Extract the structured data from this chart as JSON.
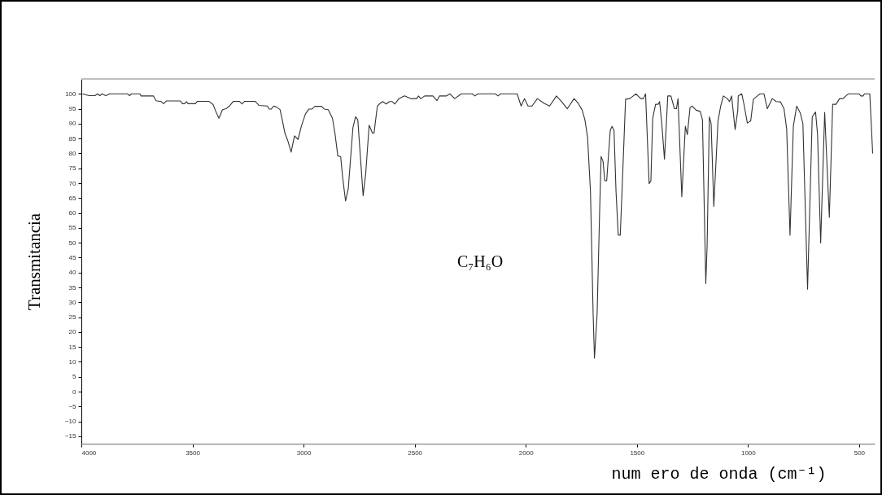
{
  "chart_data": {
    "type": "line",
    "xlabel": "num ero de onda (cm⁻¹)",
    "ylabel": "Transmitancia",
    "annotations": [
      "C₇H₆O"
    ],
    "xlim": [
      4000,
      430
    ],
    "xticks": [
      4000,
      3500,
      3000,
      2500,
      2000,
      1500,
      1000,
      500
    ],
    "ylim": [
      -17.5,
      105
    ],
    "yticks": [
      -15,
      -10,
      -5,
      0,
      5,
      10,
      15,
      20,
      25,
      30,
      35,
      40,
      45,
      50,
      55,
      60,
      65,
      70,
      75,
      80,
      85,
      90,
      95,
      100
    ],
    "grid": false,
    "x": [
      3994,
      3966,
      3939,
      3927,
      3917,
      3907,
      3890,
      3872,
      3792,
      3784,
      3774,
      3737,
      3731,
      3676,
      3664,
      3640,
      3630,
      3618,
      3554,
      3545,
      3536,
      3527,
      3520,
      3487,
      3478,
      3426,
      3407,
      3395,
      3381,
      3365,
      3349,
      3334,
      3316,
      3289,
      3277,
      3265,
      3218,
      3200,
      3163,
      3155,
      3145,
      3135,
      3123,
      3106,
      3096,
      3084,
      3072,
      3056,
      3041,
      3025,
      3010,
      2992,
      2976,
      2962,
      2949,
      2919,
      2907,
      2889,
      2870,
      2858,
      2846,
      2833,
      2824,
      2811,
      2799,
      2778,
      2766,
      2756,
      2732,
      2720,
      2705,
      2690,
      2683,
      2668,
      2656,
      2644,
      2628,
      2614,
      2601,
      2589,
      2571,
      2546,
      2516,
      2491,
      2483,
      2473,
      2455,
      2418,
      2400,
      2388,
      2357,
      2341,
      2320,
      2290,
      2241,
      2229,
      2216,
      2137,
      2125,
      2113,
      2039,
      2021,
      2006,
      1990,
      1972,
      1948,
      1917,
      1893,
      1862,
      1838,
      1813,
      1783,
      1764,
      1746,
      1734,
      1722,
      1709,
      1697,
      1691,
      1679,
      1667,
      1661,
      1652,
      1645,
      1636,
      1620,
      1612,
      1603,
      1594,
      1584,
      1575,
      1567,
      1551,
      1532,
      1520,
      1504,
      1483,
      1471,
      1461,
      1445,
      1437,
      1429,
      1416,
      1404,
      1398,
      1388,
      1376,
      1361,
      1347,
      1331,
      1322,
      1315,
      1298,
      1282,
      1273,
      1261,
      1251,
      1233,
      1215,
      1205,
      1190,
      1184,
      1174,
      1166,
      1154,
      1135,
      1123,
      1111,
      1093,
      1083,
      1074,
      1058,
      1046,
      1044,
      1028,
      1019,
      1003,
      988,
      976,
      958,
      946,
      928,
      913,
      891,
      873,
      854,
      838,
      826,
      811,
      796,
      781,
      765,
      753,
      732,
      711,
      696,
      687,
      673,
      655,
      634,
      619,
      604,
      588,
      573,
      549,
      500,
      492,
      482,
      476,
      452,
      439
    ],
    "series": [
      {
        "color": "#333333",
        "values": [
          100,
          99.4,
          99.4,
          100,
          99.4,
          100,
          99.4,
          100,
          100,
          99.4,
          100,
          100,
          99.3,
          99.3,
          97.7,
          97.4,
          96.7,
          97.6,
          97.6,
          96.7,
          96.7,
          97.4,
          96.7,
          96.7,
          97.5,
          97.5,
          96.4,
          94.1,
          91.8,
          94.7,
          95,
          95.9,
          97.5,
          97.5,
          96.6,
          97.5,
          97.5,
          96.1,
          95.9,
          94.9,
          94.9,
          95.9,
          95.6,
          94.7,
          91.3,
          86.8,
          84.5,
          80.4,
          85.9,
          84.7,
          89.1,
          93.2,
          94.9,
          94.9,
          95.8,
          95.8,
          94.9,
          94.7,
          91.8,
          86.3,
          79.2,
          78.9,
          71.8,
          64,
          68.1,
          88.6,
          92.3,
          91.3,
          65.8,
          73.6,
          89.5,
          86.8,
          86.8,
          95.9,
          96.8,
          97.4,
          96.6,
          97.4,
          97.4,
          96.6,
          98.4,
          99.3,
          98.4,
          98.4,
          99.3,
          98.4,
          99.3,
          99.3,
          97.7,
          99.3,
          99.3,
          100,
          98.4,
          100,
          100,
          99.3,
          100,
          100,
          99.3,
          100,
          100,
          95.9,
          98.4,
          95.9,
          95.9,
          98.4,
          96.8,
          95.9,
          99.3,
          97.3,
          95,
          98.4,
          96.8,
          94.5,
          91.3,
          85.4,
          67.2,
          26.2,
          11.2,
          26.2,
          62.6,
          79,
          77.2,
          70.8,
          70.8,
          87.7,
          89.1,
          87.7,
          67.2,
          52.6,
          52.5,
          67.2,
          98.2,
          98.4,
          99.1,
          100,
          98.4,
          98.4,
          100,
          69.9,
          70.8,
          91.8,
          96.5,
          96.5,
          97.4,
          90,
          78.1,
          99.3,
          99.3,
          95,
          95,
          98.4,
          65.4,
          89.1,
          86.3,
          95.4,
          95.9,
          94.5,
          94.1,
          91.3,
          36.3,
          49,
          92.3,
          90,
          62.2,
          90.9,
          95.9,
          99.3,
          98.4,
          97.4,
          99.3,
          88,
          94.5,
          99.3,
          100,
          96.8,
          90.2,
          90.9,
          98.2,
          99.3,
          100,
          100,
          95,
          98.4,
          97.4,
          97.3,
          95,
          88.2,
          52.5,
          89.1,
          95.9,
          93.6,
          90,
          34.4,
          92.3,
          93.9,
          86.3,
          49.9,
          93.8,
          58.5,
          96.5,
          96.5,
          98.4,
          98.4,
          100,
          100,
          99.3,
          99.3,
          100,
          100,
          80
        ]
      }
    ]
  }
}
